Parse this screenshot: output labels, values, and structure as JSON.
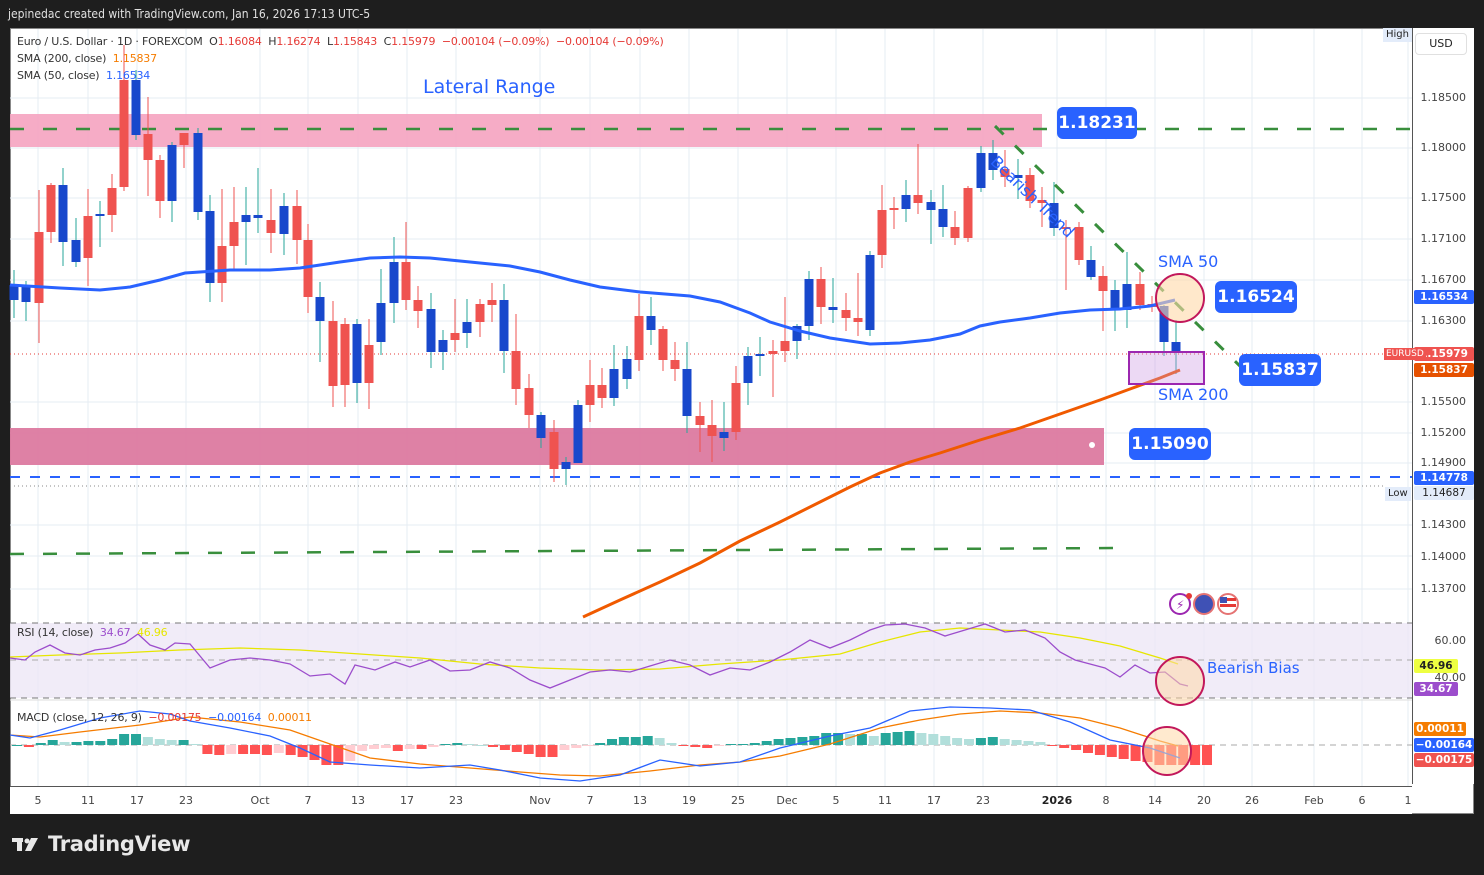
{
  "header": {
    "credit": "jepinedac created with TradingView.com, Jan 16, 2026 17:13 UTC-5"
  },
  "symbol": {
    "name": "Euro / U.S. Dollar · 1D · FOREXCOM",
    "open_label": "O",
    "open": "1.16084",
    "high_label": "H",
    "high": "1.16274",
    "low_label": "L",
    "low": "1.15843",
    "close_label": "C",
    "close": "1.15979",
    "change": "−0.00104 (−0.09%)",
    "change2": "−0.00104 (−0.09%)"
  },
  "indicators": {
    "sma200": {
      "label": "SMA (200, close)",
      "value": "1.15837",
      "color": "#f05a00"
    },
    "sma50": {
      "label": "SMA (50, close)",
      "value": "1.16534",
      "color": "#2962ff"
    },
    "rsi": {
      "label": "RSI (14, close)",
      "value": "34.67",
      "ma_value": "46.96"
    },
    "macd": {
      "label": "MACD (close, 12, 26, 9)",
      "hist": "−0.00175",
      "macd": "−0.00164",
      "signal": "0.00011"
    }
  },
  "price_axis": {
    "currency": "USD",
    "high_tag": "High",
    "low_tag": "Low",
    "ticks": [
      "1.18500",
      "1.18000",
      "1.17500",
      "1.17100",
      "1.16700",
      "1.16300",
      "1.15500",
      "1.15200",
      "1.14900",
      "1.14300",
      "1.14000",
      "1.13700"
    ],
    "badges": {
      "sma50": "1.16534",
      "eurusd_tag": "EURUSD",
      "last": "1.15979",
      "sma200": "1.15837",
      "blue_line": "1.14778",
      "low": "1.14687"
    },
    "rsi_ticks": [
      "60.00",
      "40.00"
    ],
    "rsi_badges": {
      "ma": "46.96",
      "rsi": "34.67"
    },
    "macd_badges": {
      "signal": "0.00011",
      "macd": "−0.00164",
      "hist": "−0.00175"
    }
  },
  "time_axis": {
    "labels": [
      "5",
      "11",
      "17",
      "23",
      "Oct",
      "7",
      "13",
      "17",
      "23",
      "Nov",
      "7",
      "13",
      "19",
      "25",
      "Dec",
      "5",
      "11",
      "17",
      "23",
      "2026",
      "8",
      "14",
      "20",
      "26",
      "Feb",
      "6",
      "1"
    ]
  },
  "annotations": {
    "lateral_range": "Lateral Range",
    "bearish_trend": "Bearish Trend",
    "sma50_text": "SMA 50",
    "sma200_text": "SMA 200",
    "bearish_bias": "Bearish Bias",
    "level_top": "1.18231",
    "level_sma50": "1.16524",
    "level_sma200": "1.15837",
    "level_support": "1.15090"
  },
  "brand": {
    "name": "TradingView"
  },
  "colors": {
    "bull": "#1848cc",
    "bear": "#ef5350",
    "sma50": "#2962ff",
    "sma200": "#f05a00",
    "resistance_zone": "#f5a3c0",
    "support_zone": "#dc7aa0",
    "green_dash": "#388e3c",
    "rsi": "#9c4dcc",
    "rsi_ma": "#e6e600"
  },
  "chart_data": {
    "type": "candlestick",
    "title": "Euro / U.S. Dollar · 1D · FOREXCOM",
    "xlabel": "",
    "ylabel": "USD",
    "ylim": [
      1.1355,
      1.1895
    ],
    "x_range": "Sep 2025 – Feb 2026 (daily)",
    "series": [
      {
        "name": "SMA 50",
        "last": 1.16534,
        "shape": "flat ~1.166 in Sep, dip to ~1.1635 late Nov, rising to 1.1653"
      },
      {
        "name": "SMA 200",
        "last": 1.15837,
        "shape": "rising from ~1.137 (early Nov) to 1.15837"
      }
    ],
    "levels": [
      {
        "name": "Resistance zone",
        "from": 1.18,
        "to": 1.1835,
        "dashed_mid": 1.18231
      },
      {
        "name": "Support zone",
        "from": 1.1486,
        "to": 1.1522,
        "label": 1.1509
      },
      {
        "name": "Blue dashed",
        "value": 1.14778
      },
      {
        "name": "Green dashed lower",
        "value": 1.1405
      },
      {
        "name": "Bearish trendline",
        "from": [
          "Dec 23",
          1.1825
        ],
        "to": [
          "Jan 21",
          1.159
        ]
      }
    ],
    "ohlc_last": {
      "open": 1.16084,
      "high": 1.16274,
      "low": 1.15843,
      "close": 1.15979
    },
    "rsi": {
      "value": 34.67,
      "ma": 46.96,
      "bands": [
        40,
        60
      ]
    },
    "macd": {
      "hist": -0.00175,
      "macd": -0.00164,
      "signal": 0.00011
    }
  }
}
